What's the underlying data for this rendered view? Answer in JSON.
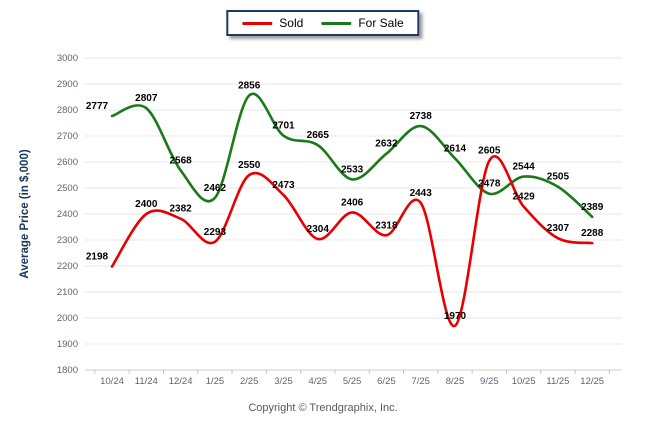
{
  "chart_data": {
    "type": "line",
    "title": "",
    "categories": [
      "10/24",
      "11/24",
      "12/24",
      "1/25",
      "2/25",
      "3/25",
      "4/25",
      "5/25",
      "6/25",
      "7/25",
      "8/25",
      "9/25",
      "10/25",
      "11/25",
      "12/25"
    ],
    "series": [
      {
        "name": "Sold",
        "color": "#e80000",
        "values": [
          2198,
          2400,
          2382,
          2293,
          2550,
          2473,
          2304,
          2406,
          2318,
          2443,
          1970,
          2605,
          2429,
          2307,
          2288
        ]
      },
      {
        "name": "For Sale",
        "color": "#1a7a1a",
        "values": [
          2777,
          2807,
          2568,
          2462,
          2856,
          2701,
          2665,
          2533,
          2632,
          2738,
          2614,
          2478,
          2544,
          2505,
          2389
        ]
      }
    ],
    "xlabel": "",
    "ylabel": "Average Price (in $,000)",
    "ylim": [
      1800,
      3000
    ],
    "ytick_step": 100,
    "grid": true,
    "legend_position": "top-center",
    "line_style": "smooth",
    "show_point_labels": true
  },
  "colors": {
    "sold": "#e80000",
    "for_sale": "#1a7a1a",
    "legend_border": "#203864",
    "axis_text": "#5b6570",
    "gridline": "#e7e7e7",
    "y_title": "#17375E"
  },
  "footer": {
    "copyright": "Copyright © Trendgraphix, Inc."
  }
}
